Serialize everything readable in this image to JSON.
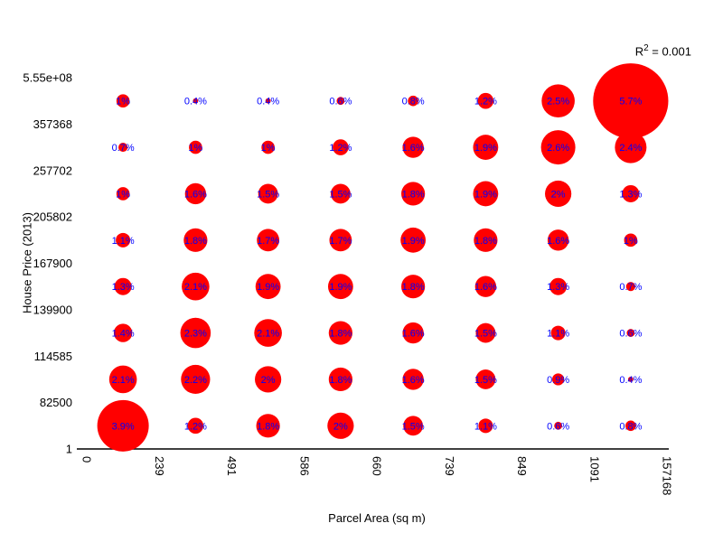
{
  "figure": {
    "background": "#ffffff",
    "r2_annotation": {
      "prefix": "R",
      "sup": "2",
      "suffix": " = 0.001"
    }
  },
  "chart_data": {
    "type": "scatter",
    "subtype": "balloon-matrix-bubble-plot",
    "title": "",
    "xlabel": "Parcel Area (sq m)",
    "ylabel": "House Price (2013)",
    "annotation": "R^2 = 0.001",
    "grid": false,
    "legend": null,
    "x_bin_edges_left_to_right": [
      "0",
      "239",
      "491",
      "586",
      "660",
      "739",
      "849",
      "1091",
      "157168"
    ],
    "y_bin_edges_top_to_bottom": [
      "5.55e+08",
      "357368",
      "257702",
      "205802",
      "167900",
      "139900",
      "114585",
      "82500",
      "1"
    ],
    "cell_percentages_rows_top_to_bottom": [
      [
        1.0,
        0.4,
        0.4,
        0.6,
        0.8,
        1.2,
        2.5,
        5.7
      ],
      [
        0.7,
        1.0,
        1.0,
        1.2,
        1.6,
        1.9,
        2.6,
        2.4
      ],
      [
        1.0,
        1.6,
        1.5,
        1.5,
        1.8,
        1.9,
        2.0,
        1.3
      ],
      [
        1.1,
        1.8,
        1.7,
        1.7,
        1.9,
        1.8,
        1.6,
        1.0
      ],
      [
        1.3,
        2.1,
        1.9,
        1.9,
        1.8,
        1.6,
        1.3,
        0.7
      ],
      [
        1.4,
        2.3,
        2.1,
        1.8,
        1.6,
        1.5,
        1.1,
        0.6
      ],
      [
        2.1,
        2.2,
        2.0,
        1.8,
        1.6,
        1.5,
        0.9,
        0.4
      ],
      [
        3.9,
        1.2,
        1.8,
        2.0,
        1.5,
        1.1,
        0.6,
        0.8
      ]
    ],
    "bubble_size_note": "bubble radius proportional to cell percentage",
    "colors": {
      "bubble": "#ff0000",
      "bubble_label": "#0000ff",
      "axis_text": "#000000",
      "axis_line": "#000000"
    }
  }
}
